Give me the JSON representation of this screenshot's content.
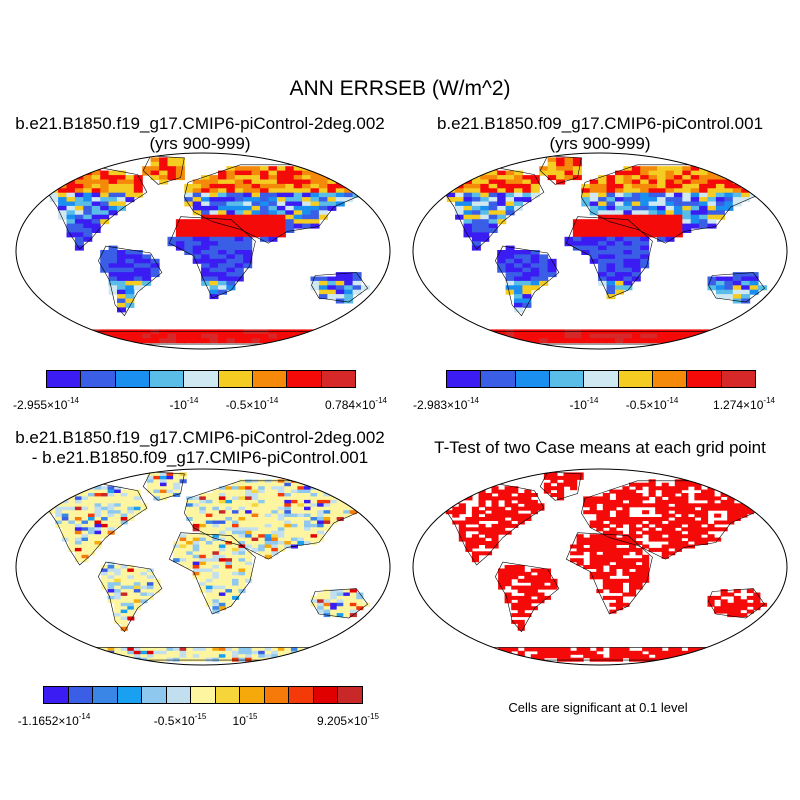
{
  "figure": {
    "title": "ANN ERRSEB (W/m^2)",
    "panels": [
      {
        "id": "case1",
        "title_line1": "b.e21.B1850.f19_g17.CMIP6-piControl-2deg.002",
        "title_line2": "(yrs 900-999)",
        "colorbar": {
          "colors": [
            "#3b1cf2",
            "#3a5ee6",
            "#1a8ff0",
            "#59bde8",
            "#cfe8f2",
            "#f5cc22",
            "#f58a0a",
            "#f50a0a",
            "#d62828"
          ],
          "labels": [
            {
              "base": "-2.955×10",
              "exp": "-14"
            },
            {
              "base": "-10",
              "exp": "-14"
            },
            {
              "base": "-0.5×10",
              "exp": "-14"
            },
            {
              "base": "0.784×10",
              "exp": "-14"
            }
          ]
        }
      },
      {
        "id": "case2",
        "title_line1": "b.e21.B1850.f09_g17.CMIP6-piControl.001",
        "title_line2": "(yrs 900-999)",
        "colorbar": {
          "colors": [
            "#3b1cf2",
            "#3a5ee6",
            "#1a8ff0",
            "#59bde8",
            "#cfe8f2",
            "#f5cc22",
            "#f58a0a",
            "#f50a0a",
            "#d62828"
          ],
          "labels": [
            {
              "base": "-2.983×10",
              "exp": "-14"
            },
            {
              "base": "-10",
              "exp": "-14"
            },
            {
              "base": "-0.5×10",
              "exp": "-14"
            },
            {
              "base": "1.274×10",
              "exp": "-14"
            }
          ]
        }
      },
      {
        "id": "diff",
        "title_line1": "b.e21.B1850.f19_g17.CMIP6-piControl-2deg.002",
        "title_line2": "- b.e21.B1850.f09_g17.CMIP6-piControl.001",
        "colorbar": {
          "colors": [
            "#3b1cf2",
            "#3a5ee6",
            "#3a86e6",
            "#1aa0f0",
            "#8ec8ee",
            "#c2dff0",
            "#fdf5a0",
            "#f5d53a",
            "#f5a90a",
            "#f57a0a",
            "#f53a0a",
            "#e00000",
            "#c82828"
          ],
          "labels": [
            {
              "base": "-1.1652×10",
              "exp": "-14"
            },
            {
              "base": "-0.5×10",
              "exp": "-15"
            },
            {
              "base": "10",
              "exp": "-15"
            },
            {
              "base": "9.205×10",
              "exp": "-15"
            }
          ]
        }
      },
      {
        "id": "ttest",
        "title_line1": "T-Test of two Case means at each grid point",
        "note": "Cells are significant at 0.1 level",
        "significant_color": "#f50a0a"
      }
    ],
    "map_colors": {
      "land_outline": "#000000",
      "ocean": "#ffffff"
    }
  }
}
